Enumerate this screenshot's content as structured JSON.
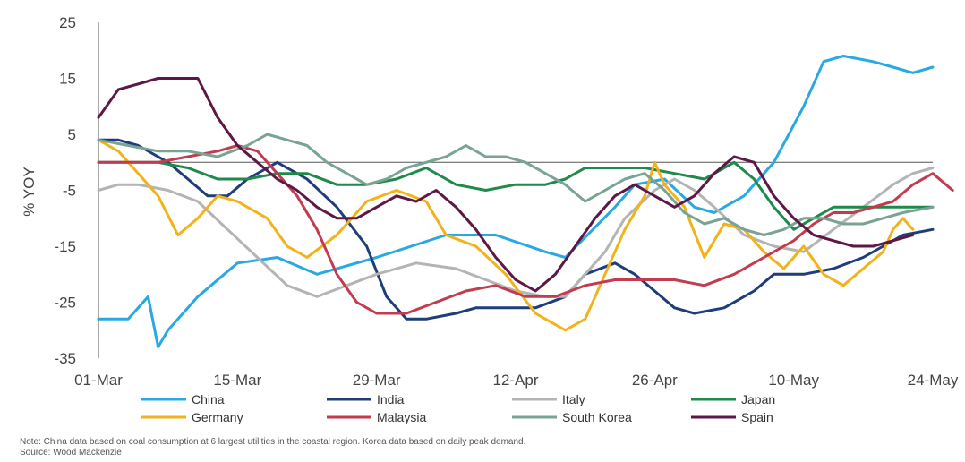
{
  "chart_data": {
    "type": "line",
    "ylabel": "% YOY",
    "ylim": [
      -35,
      25
    ],
    "yticks": [
      25,
      15,
      5,
      -5,
      -15,
      -25,
      -35
    ],
    "xlim": [
      0,
      84
    ],
    "xticks": [
      {
        "label": "01-Mar",
        "x": 0
      },
      {
        "label": "15-Mar",
        "x": 14
      },
      {
        "label": "29-Mar",
        "x": 28
      },
      {
        "label": "12-Apr",
        "x": 42
      },
      {
        "label": "26-Apr",
        "x": 56
      },
      {
        "label": "10-May",
        "x": 70
      },
      {
        "label": "24-May",
        "x": 84
      }
    ],
    "legend_position": "bottom",
    "series": [
      {
        "name": "China",
        "color": "#29a9e1",
        "points": [
          [
            0,
            -28
          ],
          [
            3,
            -28
          ],
          [
            5,
            -24
          ],
          [
            6,
            -33
          ],
          [
            7,
            -30
          ],
          [
            10,
            -24
          ],
          [
            14,
            -18
          ],
          [
            18,
            -17
          ],
          [
            22,
            -20
          ],
          [
            28,
            -17
          ],
          [
            35,
            -13
          ],
          [
            40,
            -13
          ],
          [
            45,
            -16
          ],
          [
            47,
            -17
          ],
          [
            52,
            -8
          ],
          [
            54,
            -4
          ],
          [
            57,
            -3
          ],
          [
            60,
            -8
          ],
          [
            62,
            -9
          ],
          [
            65,
            -6
          ],
          [
            68,
            0
          ],
          [
            71,
            10
          ],
          [
            73,
            18
          ],
          [
            75,
            19
          ],
          [
            78,
            18
          ],
          [
            80,
            17
          ],
          [
            82,
            16
          ],
          [
            84,
            17
          ]
        ]
      },
      {
        "name": "India",
        "color": "#1f3d7a",
        "points": [
          [
            0,
            4
          ],
          [
            2,
            4
          ],
          [
            4,
            3
          ],
          [
            7,
            0
          ],
          [
            9,
            -3
          ],
          [
            11,
            -6
          ],
          [
            13,
            -6
          ],
          [
            15,
            -3
          ],
          [
            18,
            0
          ],
          [
            21,
            -3
          ],
          [
            24,
            -8
          ],
          [
            27,
            -15
          ],
          [
            29,
            -24
          ],
          [
            31,
            -28
          ],
          [
            33,
            -28
          ],
          [
            36,
            -27
          ],
          [
            38,
            -26
          ],
          [
            41,
            -26
          ],
          [
            44,
            -26
          ],
          [
            47,
            -24
          ],
          [
            49,
            -20
          ],
          [
            52,
            -18
          ],
          [
            54,
            -20
          ],
          [
            56,
            -23
          ],
          [
            58,
            -26
          ],
          [
            60,
            -27
          ],
          [
            63,
            -26
          ],
          [
            66,
            -23
          ],
          [
            68,
            -20
          ],
          [
            71,
            -20
          ],
          [
            74,
            -19
          ],
          [
            77,
            -17
          ],
          [
            79,
            -15
          ],
          [
            81,
            -13
          ],
          [
            84,
            -12
          ]
        ]
      },
      {
        "name": "Italy",
        "color": "#b4b4b4",
        "points": [
          [
            0,
            -5
          ],
          [
            2,
            -4
          ],
          [
            4,
            -4
          ],
          [
            7,
            -5
          ],
          [
            10,
            -7
          ],
          [
            13,
            -12
          ],
          [
            16,
            -17
          ],
          [
            19,
            -22
          ],
          [
            22,
            -24
          ],
          [
            25,
            -22
          ],
          [
            28,
            -20
          ],
          [
            32,
            -18
          ],
          [
            36,
            -19
          ],
          [
            39,
            -21
          ],
          [
            42,
            -23
          ],
          [
            45,
            -24
          ],
          [
            47,
            -24
          ],
          [
            49,
            -20
          ],
          [
            51,
            -16
          ],
          [
            53,
            -10
          ],
          [
            56,
            -5
          ],
          [
            58,
            -3
          ],
          [
            60,
            -5
          ],
          [
            62,
            -8
          ],
          [
            65,
            -13
          ],
          [
            68,
            -15
          ],
          [
            71,
            -16
          ],
          [
            74,
            -12
          ],
          [
            77,
            -8
          ],
          [
            80,
            -4
          ],
          [
            82,
            -2
          ],
          [
            84,
            -1
          ]
        ]
      },
      {
        "name": "Japan",
        "color": "#1f8a4c",
        "points": [
          [
            0,
            0
          ],
          [
            3,
            0
          ],
          [
            6,
            0
          ],
          [
            9,
            -1
          ],
          [
            12,
            -3
          ],
          [
            15,
            -3
          ],
          [
            18,
            -2
          ],
          [
            21,
            -2
          ],
          [
            24,
            -4
          ],
          [
            27,
            -4
          ],
          [
            30,
            -3
          ],
          [
            33,
            -1
          ],
          [
            36,
            -4
          ],
          [
            39,
            -5
          ],
          [
            42,
            -4
          ],
          [
            45,
            -4
          ],
          [
            47,
            -3
          ],
          [
            49,
            -1
          ],
          [
            52,
            -1
          ],
          [
            55,
            -1
          ],
          [
            58,
            -2
          ],
          [
            61,
            -3
          ],
          [
            64,
            0
          ],
          [
            66,
            -3
          ],
          [
            68,
            -8
          ],
          [
            70,
            -12
          ],
          [
            72,
            -10
          ],
          [
            74,
            -8
          ],
          [
            77,
            -8
          ],
          [
            80,
            -8
          ],
          [
            82,
            -8
          ],
          [
            84,
            -8
          ]
        ]
      },
      {
        "name": "Germany",
        "color": "#f2b21a",
        "points": [
          [
            0,
            4
          ],
          [
            2,
            2
          ],
          [
            4,
            -2
          ],
          [
            6,
            -6
          ],
          [
            8,
            -13
          ],
          [
            10,
            -10
          ],
          [
            12,
            -6
          ],
          [
            14,
            -7
          ],
          [
            17,
            -10
          ],
          [
            19,
            -15
          ],
          [
            21,
            -17
          ],
          [
            24,
            -13
          ],
          [
            27,
            -7
          ],
          [
            30,
            -5
          ],
          [
            33,
            -7
          ],
          [
            35,
            -13
          ],
          [
            38,
            -15
          ],
          [
            41,
            -20
          ],
          [
            44,
            -27
          ],
          [
            47,
            -30
          ],
          [
            49,
            -28
          ],
          [
            51,
            -20
          ],
          [
            53,
            -12
          ],
          [
            55,
            -6
          ],
          [
            56,
            0
          ],
          [
            57,
            -4
          ],
          [
            59,
            -8
          ],
          [
            61,
            -17
          ],
          [
            63,
            -11
          ],
          [
            65,
            -12
          ],
          [
            67,
            -16
          ],
          [
            69,
            -19
          ],
          [
            71,
            -15
          ],
          [
            73,
            -20
          ],
          [
            75,
            -22
          ],
          [
            77,
            -19
          ],
          [
            79,
            -16
          ],
          [
            80,
            -12
          ],
          [
            81,
            -10
          ],
          [
            82,
            -12
          ]
        ]
      },
      {
        "name": "Malaysia",
        "color": "#c23b4f",
        "points": [
          [
            0,
            0
          ],
          [
            3,
            0
          ],
          [
            6,
            0
          ],
          [
            9,
            1
          ],
          [
            12,
            2
          ],
          [
            14,
            3
          ],
          [
            16,
            2
          ],
          [
            18,
            -2
          ],
          [
            20,
            -6
          ],
          [
            22,
            -12
          ],
          [
            24,
            -20
          ],
          [
            26,
            -25
          ],
          [
            28,
            -27
          ],
          [
            31,
            -27
          ],
          [
            34,
            -25
          ],
          [
            37,
            -23
          ],
          [
            40,
            -22
          ],
          [
            43,
            -24
          ],
          [
            46,
            -24
          ],
          [
            49,
            -22
          ],
          [
            52,
            -21
          ],
          [
            55,
            -21
          ],
          [
            58,
            -21
          ],
          [
            61,
            -22
          ],
          [
            64,
            -20
          ],
          [
            67,
            -17
          ],
          [
            70,
            -14
          ],
          [
            72,
            -11
          ],
          [
            74,
            -9
          ],
          [
            76,
            -9
          ],
          [
            78,
            -8
          ],
          [
            80,
            -7
          ],
          [
            82,
            -4
          ],
          [
            84,
            -2
          ],
          [
            86,
            -5
          ]
        ]
      },
      {
        "name": "South Korea",
        "color": "#79a392",
        "points": [
          [
            0,
            4
          ],
          [
            3,
            3
          ],
          [
            6,
            2
          ],
          [
            9,
            2
          ],
          [
            12,
            1
          ],
          [
            15,
            3
          ],
          [
            17,
            5
          ],
          [
            19,
            4
          ],
          [
            21,
            3
          ],
          [
            23,
            0
          ],
          [
            25,
            -2
          ],
          [
            27,
            -4
          ],
          [
            29,
            -3
          ],
          [
            31,
            -1
          ],
          [
            33,
            0
          ],
          [
            35,
            1
          ],
          [
            37,
            3
          ],
          [
            39,
            1
          ],
          [
            41,
            1
          ],
          [
            43,
            0
          ],
          [
            45,
            -2
          ],
          [
            47,
            -4
          ],
          [
            49,
            -7
          ],
          [
            51,
            -5
          ],
          [
            53,
            -3
          ],
          [
            55,
            -2
          ],
          [
            57,
            -5
          ],
          [
            59,
            -9
          ],
          [
            61,
            -11
          ],
          [
            63,
            -10
          ],
          [
            65,
            -12
          ],
          [
            67,
            -13
          ],
          [
            69,
            -12
          ],
          [
            71,
            -10
          ],
          [
            73,
            -10
          ],
          [
            75,
            -11
          ],
          [
            77,
            -11
          ],
          [
            79,
            -10
          ],
          [
            81,
            -9
          ],
          [
            84,
            -8
          ]
        ]
      },
      {
        "name": "Spain",
        "color": "#5e1845",
        "points": [
          [
            0,
            8
          ],
          [
            2,
            13
          ],
          [
            4,
            14
          ],
          [
            6,
            15
          ],
          [
            8,
            15
          ],
          [
            10,
            15
          ],
          [
            12,
            8
          ],
          [
            14,
            3
          ],
          [
            16,
            0
          ],
          [
            18,
            -3
          ],
          [
            20,
            -5
          ],
          [
            22,
            -8
          ],
          [
            24,
            -10
          ],
          [
            26,
            -10
          ],
          [
            28,
            -8
          ],
          [
            30,
            -6
          ],
          [
            32,
            -7
          ],
          [
            34,
            -5
          ],
          [
            36,
            -8
          ],
          [
            38,
            -12
          ],
          [
            40,
            -17
          ],
          [
            42,
            -21
          ],
          [
            44,
            -23
          ],
          [
            46,
            -20
          ],
          [
            48,
            -15
          ],
          [
            50,
            -10
          ],
          [
            52,
            -6
          ],
          [
            54,
            -4
          ],
          [
            56,
            -6
          ],
          [
            58,
            -8
          ],
          [
            60,
            -6
          ],
          [
            62,
            -2
          ],
          [
            64,
            1
          ],
          [
            66,
            0
          ],
          [
            68,
            -6
          ],
          [
            70,
            -10
          ],
          [
            72,
            -13
          ],
          [
            74,
            -14
          ],
          [
            76,
            -15
          ],
          [
            78,
            -15
          ],
          [
            80,
            -14
          ],
          [
            82,
            -13
          ]
        ]
      }
    ]
  },
  "note": "Note: China data based on coal consumption at 6 largest utilities in the coastal region. Korea data based on daily peak demand.",
  "source": "Source: Wood Mackenzie"
}
